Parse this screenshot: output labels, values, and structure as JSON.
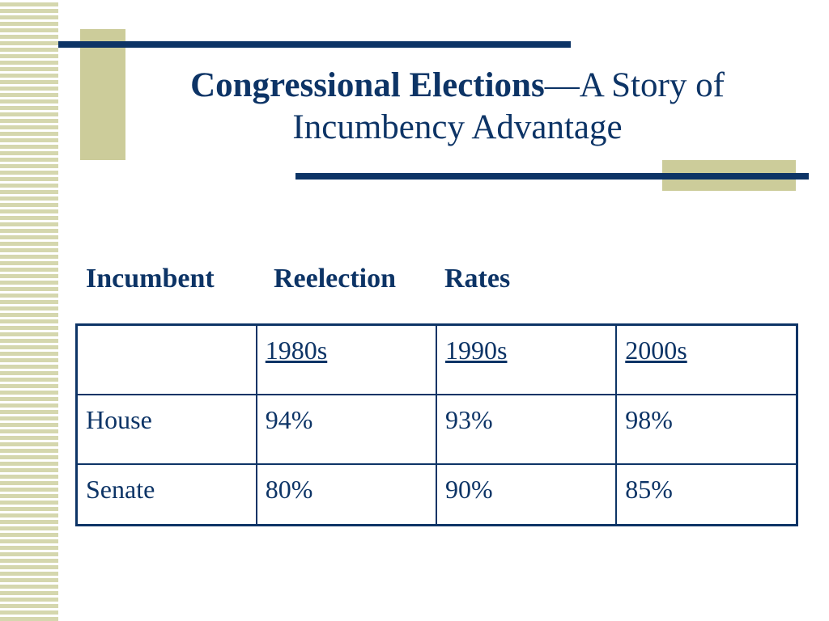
{
  "title": {
    "bold_part": "Congressional Elections",
    "rest_line1": "—A Story of",
    "line2": "Incumbency Advantage"
  },
  "subtitle": {
    "word1": "Incumbent",
    "word2": "Reelection",
    "word3": "Rates"
  },
  "table": {
    "header": [
      "",
      "1980s",
      "1990s",
      "2000s"
    ],
    "rows": [
      {
        "label": "House",
        "values": [
          "94%",
          "93%",
          "98%"
        ]
      },
      {
        "label": "Senate",
        "values": [
          "80%",
          "90%",
          "85%"
        ]
      }
    ]
  },
  "colors": {
    "text": "#0d3466",
    "accent_block": "#cccc9a",
    "stripe": "#d5d7ae"
  }
}
